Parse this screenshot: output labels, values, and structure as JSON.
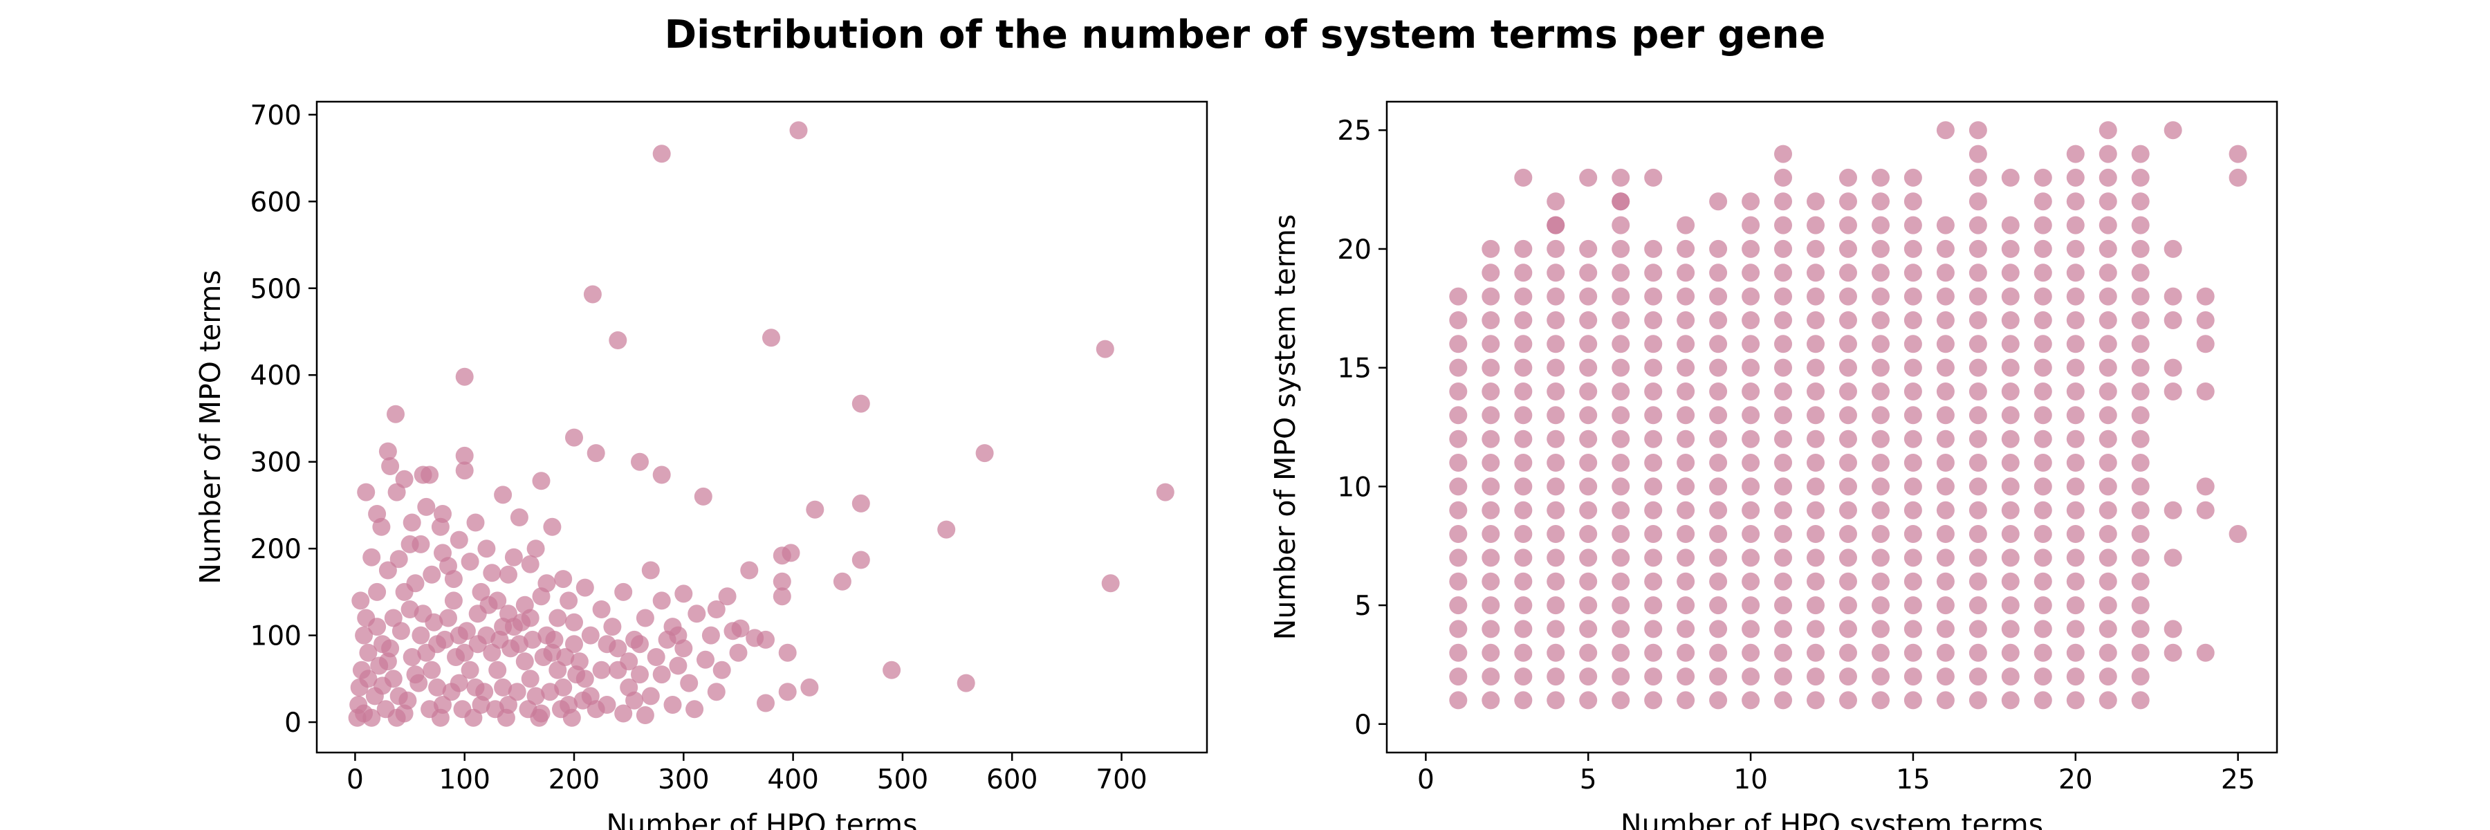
{
  "figure": {
    "title": "Distribution of the number of system terms per gene"
  },
  "colors": {
    "marker": "#c97b98",
    "marker_alpha": 0.7,
    "axes": "#000000"
  },
  "chart_data": [
    {
      "type": "scatter",
      "xlabel": "Number of HPO terms",
      "ylabel": "Number of MPO terms",
      "xlim": [
        -35,
        778
      ],
      "ylim": [
        -35,
        715
      ],
      "xticks": [
        0,
        100,
        200,
        300,
        400,
        500,
        600,
        700
      ],
      "yticks": [
        0,
        100,
        200,
        300,
        400,
        500,
        600,
        700
      ],
      "grid": false,
      "legend": "none",
      "points": [
        [
          405,
          682
        ],
        [
          280,
          655
        ],
        [
          217,
          493
        ],
        [
          240,
          440
        ],
        [
          380,
          443
        ],
        [
          685,
          430
        ],
        [
          100,
          398
        ],
        [
          37,
          355
        ],
        [
          462,
          367
        ],
        [
          575,
          310
        ],
        [
          740,
          265
        ],
        [
          690,
          160
        ],
        [
          540,
          222
        ],
        [
          420,
          245
        ],
        [
          462,
          252
        ],
        [
          318,
          260
        ],
        [
          280,
          285
        ],
        [
          260,
          300
        ],
        [
          200,
          328
        ],
        [
          220,
          310
        ],
        [
          100,
          307
        ],
        [
          100,
          290
        ],
        [
          62,
          285
        ],
        [
          68,
          285
        ],
        [
          30,
          312
        ],
        [
          32,
          295
        ],
        [
          45,
          280
        ],
        [
          38,
          265
        ],
        [
          10,
          265
        ],
        [
          20,
          240
        ],
        [
          65,
          248
        ],
        [
          80,
          240
        ],
        [
          52,
          230
        ],
        [
          170,
          278
        ],
        [
          135,
          262
        ],
        [
          150,
          236
        ],
        [
          180,
          225
        ],
        [
          390,
          192
        ],
        [
          398,
          195
        ],
        [
          390,
          162
        ],
        [
          445,
          162
        ],
        [
          462,
          187
        ],
        [
          360,
          175
        ],
        [
          270,
          175
        ],
        [
          300,
          148
        ],
        [
          312,
          125
        ],
        [
          345,
          105
        ],
        [
          352,
          108
        ],
        [
          330,
          130
        ],
        [
          390,
          145
        ],
        [
          365,
          97
        ],
        [
          375,
          95
        ],
        [
          395,
          80
        ],
        [
          415,
          40
        ],
        [
          395,
          35
        ],
        [
          375,
          22
        ],
        [
          490,
          60
        ],
        [
          558,
          45
        ],
        [
          300,
          85
        ],
        [
          320,
          72
        ],
        [
          290,
          110
        ],
        [
          260,
          90
        ],
        [
          235,
          110
        ],
        [
          240,
          85
        ],
        [
          225,
          60
        ],
        [
          250,
          40
        ],
        [
          270,
          30
        ],
        [
          290,
          20
        ],
        [
          310,
          15
        ],
        [
          330,
          35
        ],
        [
          280,
          55
        ],
        [
          210,
          155
        ],
        [
          190,
          165
        ],
        [
          170,
          145
        ],
        [
          160,
          182
        ],
        [
          145,
          190
        ],
        [
          125,
          172
        ],
        [
          110,
          230
        ],
        [
          95,
          210
        ],
        [
          80,
          195
        ],
        [
          60,
          205
        ],
        [
          40,
          188
        ],
        [
          20,
          150
        ],
        [
          15,
          190
        ],
        [
          5,
          140
        ],
        [
          10,
          120
        ],
        [
          8,
          100
        ],
        [
          12,
          80
        ],
        [
          6,
          60
        ],
        [
          4,
          40
        ],
        [
          3,
          20
        ],
        [
          2,
          5
        ],
        [
          20,
          110
        ],
        [
          25,
          90
        ],
        [
          30,
          70
        ],
        [
          35,
          50
        ],
        [
          40,
          30
        ],
        [
          45,
          10
        ],
        [
          50,
          130
        ],
        [
          55,
          160
        ],
        [
          60,
          100
        ],
        [
          65,
          80
        ],
        [
          70,
          60
        ],
        [
          75,
          40
        ],
        [
          80,
          20
        ],
        [
          85,
          120
        ],
        [
          90,
          140
        ],
        [
          95,
          100
        ],
        [
          100,
          80
        ],
        [
          105,
          60
        ],
        [
          110,
          40
        ],
        [
          115,
          20
        ],
        [
          120,
          100
        ],
        [
          125,
          80
        ],
        [
          130,
          60
        ],
        [
          135,
          40
        ],
        [
          140,
          20
        ],
        [
          145,
          110
        ],
        [
          150,
          90
        ],
        [
          155,
          70
        ],
        [
          160,
          50
        ],
        [
          165,
          30
        ],
        [
          170,
          10
        ],
        [
          175,
          100
        ],
        [
          180,
          80
        ],
        [
          185,
          60
        ],
        [
          190,
          40
        ],
        [
          195,
          20
        ],
        [
          200,
          90
        ],
        [
          205,
          70
        ],
        [
          210,
          50
        ],
        [
          215,
          30
        ],
        [
          220,
          15
        ],
        [
          30,
          175
        ],
        [
          45,
          150
        ],
        [
          70,
          170
        ],
        [
          85,
          180
        ],
        [
          115,
          150
        ],
        [
          130,
          140
        ],
        [
          140,
          125
        ],
        [
          155,
          135
        ],
        [
          175,
          160
        ],
        [
          185,
          120
        ],
        [
          200,
          115
        ],
        [
          215,
          100
        ],
        [
          230,
          90
        ],
        [
          250,
          70
        ],
        [
          260,
          55
        ],
        [
          275,
          75
        ],
        [
          285,
          95
        ],
        [
          295,
          65
        ],
        [
          305,
          45
        ],
        [
          18,
          30
        ],
        [
          28,
          15
        ],
        [
          38,
          5
        ],
        [
          48,
          25
        ],
        [
          58,
          45
        ],
        [
          68,
          15
        ],
        [
          78,
          5
        ],
        [
          88,
          35
        ],
        [
          98,
          15
        ],
        [
          108,
          5
        ],
        [
          118,
          35
        ],
        [
          128,
          15
        ],
        [
          138,
          5
        ],
        [
          148,
          35
        ],
        [
          158,
          15
        ],
        [
          168,
          5
        ],
        [
          178,
          35
        ],
        [
          188,
          15
        ],
        [
          198,
          5
        ],
        [
          208,
          25
        ],
        [
          230,
          20
        ],
        [
          245,
          10
        ],
        [
          255,
          25
        ],
        [
          265,
          8
        ],
        [
          12,
          50
        ],
        [
          22,
          65
        ],
        [
          32,
          85
        ],
        [
          42,
          105
        ],
        [
          52,
          75
        ],
        [
          62,
          125
        ],
        [
          72,
          115
        ],
        [
          82,
          95
        ],
        [
          92,
          75
        ],
        [
          102,
          105
        ],
        [
          112,
          125
        ],
        [
          122,
          135
        ],
        [
          132,
          95
        ],
        [
          142,
          85
        ],
        [
          152,
          115
        ],
        [
          162,
          95
        ],
        [
          172,
          75
        ],
        [
          182,
          95
        ],
        [
          192,
          75
        ],
        [
          202,
          55
        ],
        [
          8,
          10
        ],
        [
          15,
          5
        ],
        [
          25,
          42
        ],
        [
          35,
          120
        ],
        [
          55,
          55
        ],
        [
          75,
          90
        ],
        [
          95,
          45
        ],
        [
          112,
          90
        ],
        [
          135,
          110
        ],
        [
          160,
          120
        ],
        [
          105,
          185
        ],
        [
          120,
          200
        ],
        [
          90,
          165
        ],
        [
          50,
          205
        ],
        [
          24,
          225
        ],
        [
          78,
          225
        ],
        [
          140,
          170
        ],
        [
          165,
          200
        ],
        [
          195,
          140
        ],
        [
          225,
          130
        ],
        [
          245,
          150
        ],
        [
          265,
          120
        ],
        [
          280,
          140
        ],
        [
          295,
          100
        ],
        [
          335,
          60
        ],
        [
          350,
          80
        ],
        [
          240,
          60
        ],
        [
          255,
          95
        ],
        [
          325,
          100
        ],
        [
          340,
          145
        ]
      ]
    },
    {
      "type": "scatter",
      "xlabel": "Number of HPO system terms",
      "ylabel": "Number of MPO system terms",
      "xlim": [
        -1.2,
        26.2
      ],
      "ylim": [
        -1.2,
        26.2
      ],
      "xticks": [
        0,
        5,
        10,
        15,
        20,
        25
      ],
      "yticks": [
        0,
        5,
        10,
        15,
        20,
        25
      ],
      "grid": false,
      "legend": "none",
      "grid_points": {
        "x_from": 1,
        "x_to": 22,
        "y_from": 1,
        "y_to": 18
      },
      "column_max_y": {
        "1": 18,
        "2": 20,
        "3": 20,
        "4": 21,
        "5": 20,
        "6": 22,
        "7": 20,
        "8": 21,
        "9": 20,
        "10": 21,
        "11": 22,
        "12": 21,
        "13": 22,
        "14": 22,
        "15": 22,
        "16": 21,
        "17": 22,
        "18": 21,
        "19": 22,
        "20": 22,
        "21": 22,
        "22": 22
      },
      "extra_points": [
        [
          3,
          23
        ],
        [
          4,
          22
        ],
        [
          4,
          21
        ],
        [
          5,
          23
        ],
        [
          6,
          23
        ],
        [
          6,
          22
        ],
        [
          7,
          23
        ],
        [
          9,
          22
        ],
        [
          10,
          22
        ],
        [
          11,
          24
        ],
        [
          11,
          23
        ],
        [
          12,
          22
        ],
        [
          13,
          23
        ],
        [
          14,
          23
        ],
        [
          15,
          23
        ],
        [
          16,
          25
        ],
        [
          17,
          25
        ],
        [
          17,
          24
        ],
        [
          17,
          23
        ],
        [
          18,
          23
        ],
        [
          19,
          23
        ],
        [
          20,
          24
        ],
        [
          20,
          23
        ],
        [
          21,
          25
        ],
        [
          21,
          24
        ],
        [
          21,
          23
        ],
        [
          22,
          24
        ],
        [
          22,
          23
        ],
        [
          23,
          25
        ],
        [
          23,
          20
        ],
        [
          23,
          18
        ],
        [
          23,
          17
        ],
        [
          23,
          15
        ],
        [
          23,
          14
        ],
        [
          23,
          9
        ],
        [
          23,
          7
        ],
        [
          23,
          4
        ],
        [
          23,
          3
        ],
        [
          24,
          18
        ],
        [
          24,
          17
        ],
        [
          24,
          16
        ],
        [
          24,
          14
        ],
        [
          24,
          10
        ],
        [
          24,
          9
        ],
        [
          24,
          3
        ],
        [
          25,
          24
        ],
        [
          25,
          23
        ],
        [
          25,
          8
        ]
      ]
    }
  ]
}
